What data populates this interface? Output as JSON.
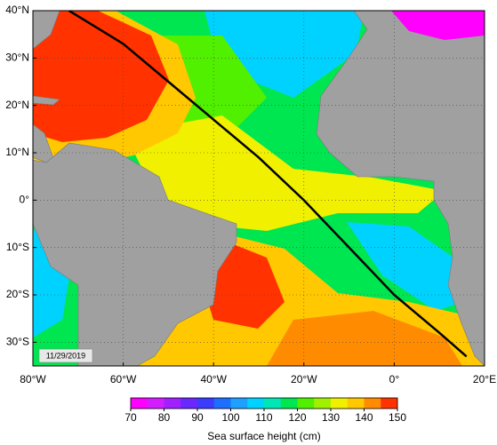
{
  "map": {
    "xlim": [
      -80,
      20
    ],
    "ylim": [
      -35,
      40
    ],
    "xticks": [
      {
        "value": -80,
        "label": "80°W"
      },
      {
        "value": -60,
        "label": "60°W"
      },
      {
        "value": -40,
        "label": "40°W"
      },
      {
        "value": -20,
        "label": "20°W"
      },
      {
        "value": 0,
        "label": "0°"
      },
      {
        "value": 20,
        "label": "20°E"
      }
    ],
    "yticks": [
      {
        "value": 40,
        "label": "40°N"
      },
      {
        "value": 30,
        "label": "30°N"
      },
      {
        "value": 20,
        "label": "20°N"
      },
      {
        "value": 10,
        "label": "10°N"
      },
      {
        "value": 0,
        "label": "0°"
      },
      {
        "value": -10,
        "label": "10°S"
      },
      {
        "value": -20,
        "label": "20°S"
      },
      {
        "value": -30,
        "label": "30°S"
      }
    ],
    "grid": true,
    "date": "11/29/2019",
    "track": {
      "lon": [
        -72,
        -60,
        -50,
        -40,
        -30,
        -20,
        -10,
        0,
        10,
        16
      ],
      "lat": [
        40,
        33,
        25,
        17,
        9,
        0,
        -10,
        -20,
        -28,
        -33
      ],
      "color": "#000000"
    }
  },
  "colorbar": {
    "label": "Sea surface height (cm)",
    "lim": [
      70,
      150
    ],
    "ticks": [
      70,
      80,
      90,
      100,
      110,
      120,
      130,
      140,
      150
    ],
    "colors": [
      "#ff00ff",
      "#d21eff",
      "#a020ff",
      "#6a28ff",
      "#3c3cff",
      "#1e6eff",
      "#1ea0ff",
      "#00d2ff",
      "#00e6b4",
      "#00e650",
      "#50f000",
      "#a0f000",
      "#f0f000",
      "#ffc800",
      "#ff8c00",
      "#ff3200"
    ]
  }
}
